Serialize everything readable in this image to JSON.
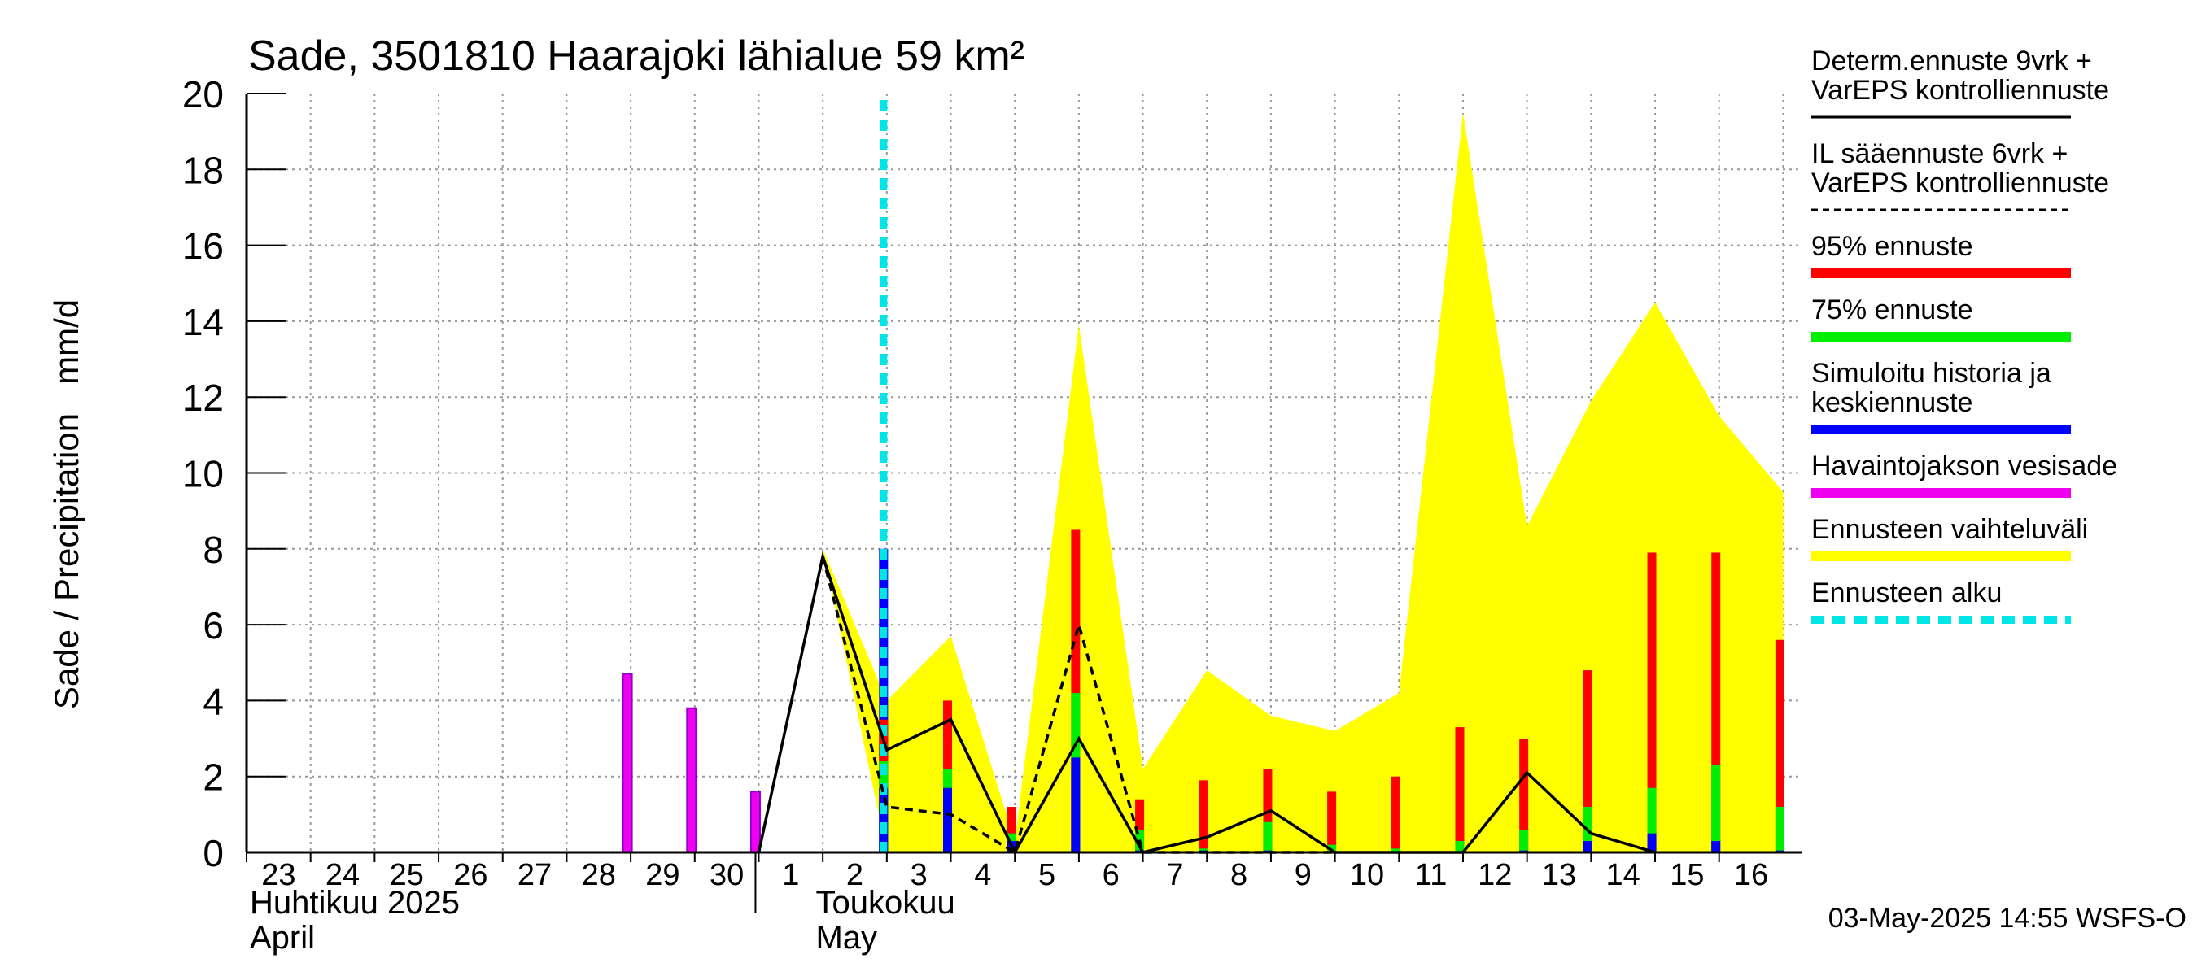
{
  "chart_data": {
    "type": "bar",
    "title": "Sade, 3501810 Haarajoki lähialue 59 km²",
    "ylabel": "Sade / Precipitation   mm/d",
    "ylim": [
      0,
      20
    ],
    "yticks": [
      "0",
      "2",
      "4",
      "6",
      "8",
      "10",
      "12",
      "14",
      "16",
      "18",
      "20"
    ],
    "days": [
      "23",
      "24",
      "25",
      "26",
      "27",
      "28",
      "29",
      "30",
      "1",
      "2",
      "3",
      "4",
      "5",
      "6",
      "7",
      "8",
      "9",
      "10",
      "11",
      "12",
      "13",
      "14",
      "15",
      "16"
    ],
    "months": [
      {
        "fi": "Huhtikuu  2025",
        "en": "April",
        "start_day_index": 0
      },
      {
        "fi": "Toukokuu",
        "en": "May",
        "start_day_index": 8
      }
    ],
    "forecast_start_day_index": 10,
    "observed_precip": [
      0,
      0,
      0,
      0,
      0,
      4.7,
      3.8,
      1.6,
      0,
      8.0
    ],
    "forecast_bars": [
      {
        "day_index": 10,
        "p95": 3.5,
        "p75": 2.4,
        "mean": 1.7
      },
      {
        "day_index": 11,
        "p95": 4.0,
        "p75": 2.2,
        "mean": 1.7
      },
      {
        "day_index": 12,
        "p95": 1.2,
        "p75": 0.5,
        "mean": 0.3
      },
      {
        "day_index": 13,
        "p95": 8.5,
        "p75": 4.2,
        "mean": 2.5
      },
      {
        "day_index": 14,
        "p95": 1.4,
        "p75": 0.6,
        "mean": 0.05
      },
      {
        "day_index": 15,
        "p95": 1.9,
        "p75": 0.1,
        "mean": 0.05
      },
      {
        "day_index": 16,
        "p95": 2.2,
        "p75": 0.8,
        "mean": 0.05
      },
      {
        "day_index": 17,
        "p95": 1.6,
        "p75": 0.2,
        "mean": 0.0
      },
      {
        "day_index": 18,
        "p95": 2.0,
        "p75": 0.1,
        "mean": 0.0
      },
      {
        "day_index": 19,
        "p95": 3.3,
        "p75": 0.3,
        "mean": 0.0
      },
      {
        "day_index": 20,
        "p95": 3.0,
        "p75": 0.6,
        "mean": 0.05
      },
      {
        "day_index": 21,
        "p95": 4.8,
        "p75": 1.2,
        "mean": 0.3
      },
      {
        "day_index": 22,
        "p95": 7.9,
        "p75": 1.7,
        "mean": 0.5
      },
      {
        "day_index": 23,
        "p95": 7.9,
        "p75": 2.3,
        "mean": 0.3
      },
      {
        "day_index": 24,
        "p95": 5.6,
        "p75": 1.2,
        "mean": 0.05
      }
    ],
    "range_band": [
      {
        "x": 9.0,
        "lo": 8.0,
        "hi": 8.0
      },
      {
        "x": 10.0,
        "lo": 0.0,
        "hi": 4.0
      },
      {
        "x": 11.0,
        "lo": 0.0,
        "hi": 5.7
      },
      {
        "x": 12.0,
        "lo": 0.0,
        "hi": 0.3
      },
      {
        "x": 13.0,
        "lo": 0.0,
        "hi": 13.9
      },
      {
        "x": 14.0,
        "lo": 0.0,
        "hi": 2.2
      },
      {
        "x": 15.0,
        "lo": 0.0,
        "hi": 4.8
      },
      {
        "x": 16.0,
        "lo": 0.0,
        "hi": 3.6
      },
      {
        "x": 17.0,
        "lo": 0.0,
        "hi": 3.2
      },
      {
        "x": 18.0,
        "lo": 0.0,
        "hi": 4.2
      },
      {
        "x": 19.0,
        "lo": 0.0,
        "hi": 19.5
      },
      {
        "x": 20.0,
        "lo": 0.0,
        "hi": 8.6
      },
      {
        "x": 21.0,
        "lo": 0.0,
        "hi": 11.9
      },
      {
        "x": 22.0,
        "lo": 0.0,
        "hi": 14.5
      },
      {
        "x": 23.0,
        "lo": 0.0,
        "hi": 11.5
      },
      {
        "x": 24.0,
        "lo": 0.0,
        "hi": 9.5
      }
    ],
    "determ_line": [
      {
        "x": 8.0,
        "y": 0.0
      },
      {
        "x": 9.0,
        "y": 7.8
      },
      {
        "x": 10.0,
        "y": 2.7
      },
      {
        "x": 11.0,
        "y": 3.5
      },
      {
        "x": 12.0,
        "y": 0.0
      },
      {
        "x": 13.0,
        "y": 3.0
      },
      {
        "x": 14.0,
        "y": 0.0
      },
      {
        "x": 15.0,
        "y": 0.4
      },
      {
        "x": 16.0,
        "y": 1.1
      },
      {
        "x": 17.0,
        "y": 0.0
      },
      {
        "x": 18.0,
        "y": 0.0
      },
      {
        "x": 19.0,
        "y": 0.0
      },
      {
        "x": 20.0,
        "y": 2.1
      },
      {
        "x": 21.0,
        "y": 0.5
      },
      {
        "x": 22.0,
        "y": 0.0
      }
    ],
    "il_line": [
      {
        "x": 9.0,
        "y": 7.8
      },
      {
        "x": 10.0,
        "y": 1.2
      },
      {
        "x": 11.0,
        "y": 1.0
      },
      {
        "x": 12.0,
        "y": 0.0
      },
      {
        "x": 13.0,
        "y": 6.0
      },
      {
        "x": 14.0,
        "y": 0.0
      },
      {
        "x": 15.0,
        "y": 0.0
      },
      {
        "x": 16.0,
        "y": 0.0
      },
      {
        "x": 17.0,
        "y": 0.0
      }
    ],
    "legend": [
      {
        "label": "Determ.ennuste 9vrk +\nVarEPS kontrolliennuste",
        "style": "solid-line",
        "color": "#000000"
      },
      {
        "label": "IL sääennuste 6vrk  +\n  VarEPS kontrolliennuste",
        "style": "dashed-line",
        "color": "#000000"
      },
      {
        "label": "95% ennuste",
        "style": "bar",
        "color": "#ff0000"
      },
      {
        "label": "75% ennuste",
        "style": "bar",
        "color": "#00ee00"
      },
      {
        "label": "Simuloitu historia ja\nkeskiennuste",
        "style": "bar",
        "color": "#0000ff"
      },
      {
        "label": "Havaintojakson vesisade",
        "style": "bar",
        "color": "#ee00ee"
      },
      {
        "label": "Ennusteen vaihteluväli",
        "style": "bar",
        "color": "#ffff00"
      },
      {
        "label": "Ennusteen alku",
        "style": "dotted-bar",
        "color": "#00e5e5"
      }
    ],
    "footer": "03-May-2025 14:55 WSFS-O",
    "colors": {
      "band": "#ffff00",
      "p95": "#ff0000",
      "p75": "#00ee00",
      "mean": "#0000ff",
      "observed": "#ee00ee",
      "observed_edge": "#9400d3",
      "forecast_start": "#00e5e5",
      "grid": "#999999"
    }
  }
}
